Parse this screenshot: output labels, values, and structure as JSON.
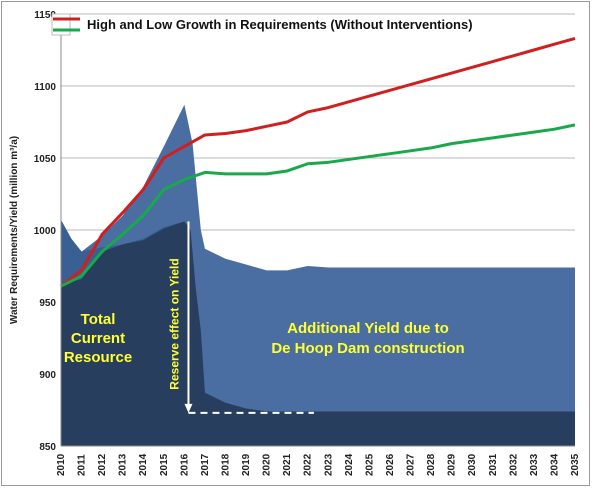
{
  "chart_data": {
    "type": "area",
    "x": [
      2010,
      2011,
      2012,
      2013,
      2014,
      2015,
      2016,
      2017,
      2018,
      2019,
      2020,
      2021,
      2022,
      2023,
      2024,
      2025,
      2026,
      2027,
      2028,
      2029,
      2030,
      2031,
      2032,
      2033,
      2034,
      2035
    ],
    "xticks": [
      "2010",
      "2011",
      "2012",
      "2013",
      "2014",
      "2015",
      "2016",
      "2017",
      "2018",
      "2019",
      "2020",
      "2021",
      "2022",
      "2023",
      "2024",
      "2025",
      "2026",
      "2027",
      "2028",
      "2029",
      "2030",
      "2031",
      "2032",
      "2033",
      "2034",
      "2035"
    ],
    "ylabel": "Water Requirements/Yield (million m³/a)",
    "ylim": [
      850,
      1150
    ],
    "yticks": [
      850,
      900,
      950,
      1000,
      1050,
      1100,
      1150
    ],
    "grid": true,
    "legend": "top-left",
    "areas": [
      {
        "role": "upper",
        "color": "#3a5f92",
        "points": [
          [
            2010,
            1007
          ],
          [
            2010.5,
            994
          ],
          [
            2011,
            985
          ],
          [
            2012,
            988
          ],
          [
            2013,
            990
          ],
          [
            2014,
            994
          ],
          [
            2015,
            1002
          ],
          [
            2016,
            1006
          ],
          [
            2016.3,
            1000
          ],
          [
            2016.55,
            960
          ],
          [
            2016.8,
            930
          ],
          [
            2017,
            887
          ],
          [
            2018,
            880
          ],
          [
            2019,
            876
          ],
          [
            2020,
            874
          ],
          [
            2022,
            874
          ],
          [
            2035,
            874
          ]
        ]
      },
      {
        "role": "spike",
        "color": "#4a6ea2",
        "points": [
          [
            2010,
            1007
          ],
          [
            2010.5,
            994
          ],
          [
            2011,
            985
          ],
          [
            2012,
            996
          ],
          [
            2013,
            1010
          ],
          [
            2014,
            1030
          ],
          [
            2015,
            1058
          ],
          [
            2016,
            1087
          ],
          [
            2016.4,
            1060
          ],
          [
            2016.8,
            1000
          ],
          [
            2017,
            987
          ],
          [
            2018,
            980
          ],
          [
            2019,
            976
          ],
          [
            2020,
            972
          ],
          [
            2021,
            972
          ],
          [
            2022,
            975
          ],
          [
            2023,
            974
          ],
          [
            2035,
            974
          ]
        ]
      },
      {
        "role": "total-current-resource",
        "color": "#273e5f",
        "points": [
          [
            2010,
            962
          ],
          [
            2011,
            966
          ],
          [
            2012,
            985
          ],
          [
            2013,
            990
          ],
          [
            2014,
            993
          ],
          [
            2015,
            1001
          ],
          [
            2016,
            1006
          ],
          [
            2016.3,
            1000
          ],
          [
            2016.55,
            960
          ],
          [
            2016.8,
            930
          ],
          [
            2017,
            887
          ],
          [
            2018,
            880
          ],
          [
            2019,
            876
          ],
          [
            2020,
            874
          ],
          [
            2022,
            874
          ],
          [
            2035,
            874
          ]
        ]
      }
    ],
    "series": [
      {
        "name": "High and Low Growth in Requirements (Without Interventions)",
        "color": "#d11f1f",
        "values": [
          961,
          972,
          997,
          1012,
          1028,
          1050,
          1058,
          1066,
          1067,
          1069,
          1072,
          1075,
          1082,
          1085,
          1089,
          1093,
          1097,
          1101,
          1105,
          1109,
          1113,
          1117,
          1121,
          1125,
          1129,
          1133
        ]
      },
      {
        "color": "#19a84a",
        "values": [
          961,
          968,
          985,
          997,
          1010,
          1028,
          1035,
          1040,
          1039,
          1039,
          1039,
          1041,
          1046,
          1047,
          1049,
          1051,
          1053,
          1055,
          1057,
          1060,
          1062,
          1064,
          1066,
          1068,
          1070,
          1073
        ]
      }
    ],
    "reserve_arrow": {
      "x": 2016.2,
      "from": 1006,
      "to": 873
    },
    "dashed_line": {
      "from_x": 2016.2,
      "to_x": 2022.3,
      "y": 873
    },
    "annotations": {
      "total": [
        "Total",
        "Current",
        "Resource"
      ],
      "reserve": "Reserve effect on Yield",
      "additional": [
        "Additional Yield due to",
        "De Hoop Dam construction"
      ]
    }
  },
  "legend_text": "High and Low Growth in Requirements (Without Interventions)",
  "colors": {
    "grid": "#b9b9b9",
    "background": "#ffffff"
  }
}
